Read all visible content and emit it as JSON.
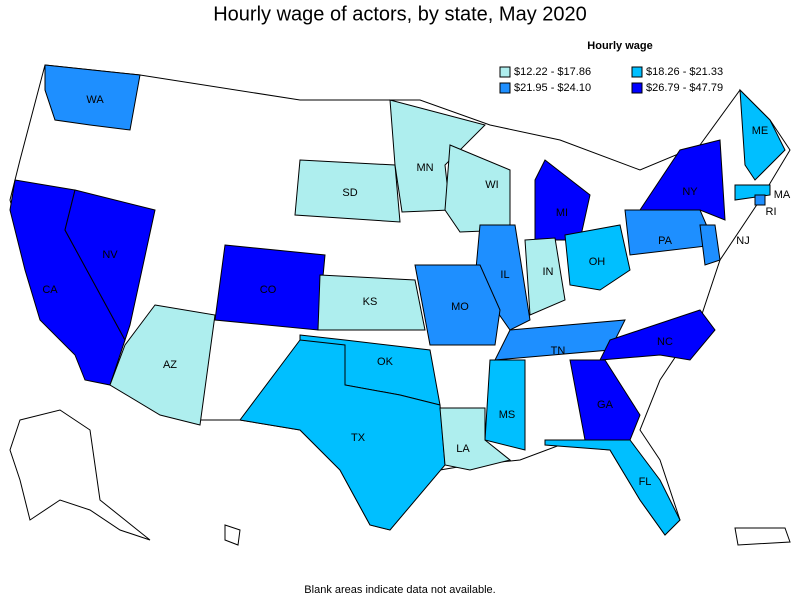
{
  "title": "Hourly wage of actors, by state, May 2020",
  "legend": {
    "title": "Hourly wage",
    "items": [
      {
        "label": "$12.22 - $17.86",
        "color": "#aeeeee"
      },
      {
        "label": "$18.26 - $21.33",
        "color": "#00bfff"
      },
      {
        "label": "$21.95 - $24.10",
        "color": "#1e8fff"
      },
      {
        "label": "$26.79 - $47.79",
        "color": "#0000ff"
      }
    ]
  },
  "states": [
    {
      "label": "WA",
      "color": "#1e8fff"
    },
    {
      "label": "CA",
      "color": "#0000ff"
    },
    {
      "label": "NV",
      "color": "#0000ff"
    },
    {
      "label": "AZ",
      "color": "#aeeeee"
    },
    {
      "label": "CO",
      "color": "#0000ff"
    },
    {
      "label": "KS",
      "color": "#aeeeee"
    },
    {
      "label": "SD",
      "color": "#aeeeee"
    },
    {
      "label": "MN",
      "color": "#aeeeee"
    },
    {
      "label": "WI",
      "color": "#aeeeee"
    },
    {
      "label": "MI",
      "color": "#0000ff"
    },
    {
      "label": "IL",
      "color": "#1e8fff"
    },
    {
      "label": "IN",
      "color": "#aeeeee"
    },
    {
      "label": "OH",
      "color": "#00bfff"
    },
    {
      "label": "MO",
      "color": "#1e8fff"
    },
    {
      "label": "OK",
      "color": "#00bfff"
    },
    {
      "label": "TX",
      "color": "#00bfff"
    },
    {
      "label": "LA",
      "color": "#aeeeee"
    },
    {
      "label": "MS",
      "color": "#00bfff"
    },
    {
      "label": "TN",
      "color": "#1e8fff"
    },
    {
      "label": "NC",
      "color": "#0000ff"
    },
    {
      "label": "GA",
      "color": "#0000ff"
    },
    {
      "label": "FL",
      "color": "#00bfff"
    },
    {
      "label": "PA",
      "color": "#1e8fff"
    },
    {
      "label": "NY",
      "color": "#0000ff"
    },
    {
      "label": "NJ",
      "color": "#1e8fff"
    },
    {
      "label": "MA",
      "color": "#00bfff"
    },
    {
      "label": "ME",
      "color": "#00bfff"
    },
    {
      "label": "RI",
      "color": "#1e8fff"
    }
  ],
  "footnote": "Blank areas indicate data not available."
}
